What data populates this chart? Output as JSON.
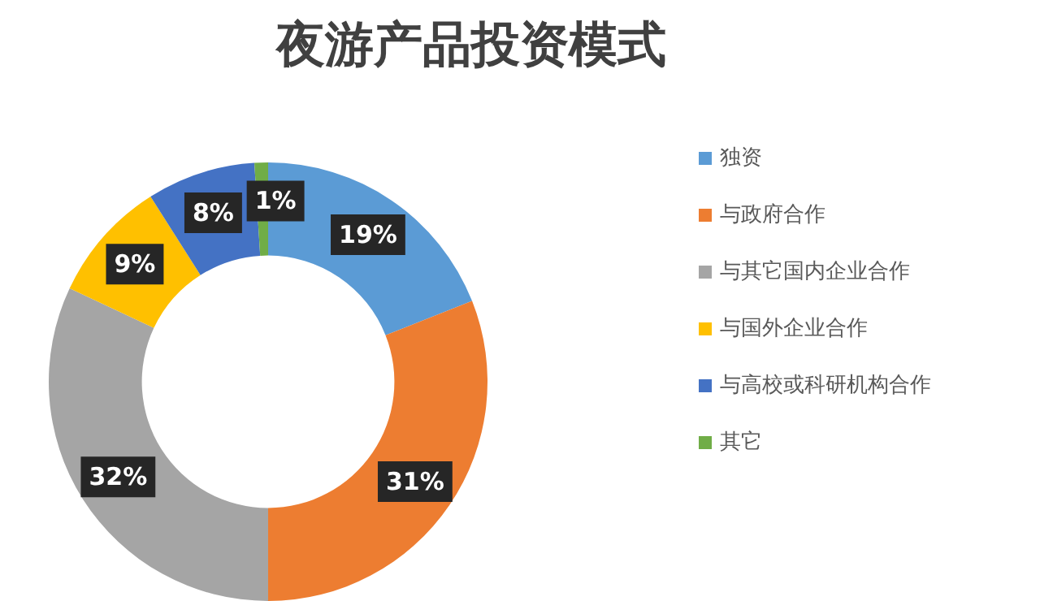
{
  "chart_data": {
    "type": "donut",
    "title": "夜游产品投资模式",
    "categories": [
      "独资",
      "与政府合作",
      "与其它国内企业合作",
      "与国外企业合作",
      "与高校或科研机构合作",
      "其它"
    ],
    "values": [
      19,
      31,
      32,
      9,
      8,
      1
    ],
    "value_labels": [
      "19%",
      "31%",
      "32%",
      "9%",
      "8%",
      "1%"
    ],
    "colors": [
      "#5b9bd5",
      "#ed7d31",
      "#a5a5a5",
      "#ffc000",
      "#4472c4",
      "#70ad47"
    ],
    "legend": "right"
  }
}
